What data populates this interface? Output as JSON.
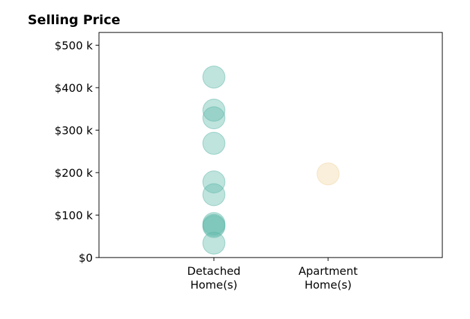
{
  "chart_data": {
    "type": "scatter",
    "title": "Selling Price",
    "xlabel": "",
    "ylabel": "",
    "categories": [
      "Detached\nHome(s)",
      "Apartment\nHome(s)"
    ],
    "ylim": [
      0,
      530000
    ],
    "y_ticks": [
      {
        "value": 0,
        "label": "$0"
      },
      {
        "value": 100000,
        "label": "$100 k"
      },
      {
        "value": 200000,
        "label": "$200 k"
      },
      {
        "value": 300000,
        "label": "$300 k"
      },
      {
        "value": 400000,
        "label": "$400 k"
      },
      {
        "value": 500000,
        "label": "$500 k"
      }
    ],
    "grid": false,
    "series": [
      {
        "category": "Detached\nHome(s)",
        "color": "#5fb8aa",
        "values": [
          425000,
          347000,
          329000,
          269000,
          178000,
          148000,
          80000,
          76000,
          73000,
          34000
        ]
      },
      {
        "category": "Apartment\nHome(s)",
        "color": "#f1d6a3",
        "values": [
          197000
        ]
      }
    ]
  }
}
